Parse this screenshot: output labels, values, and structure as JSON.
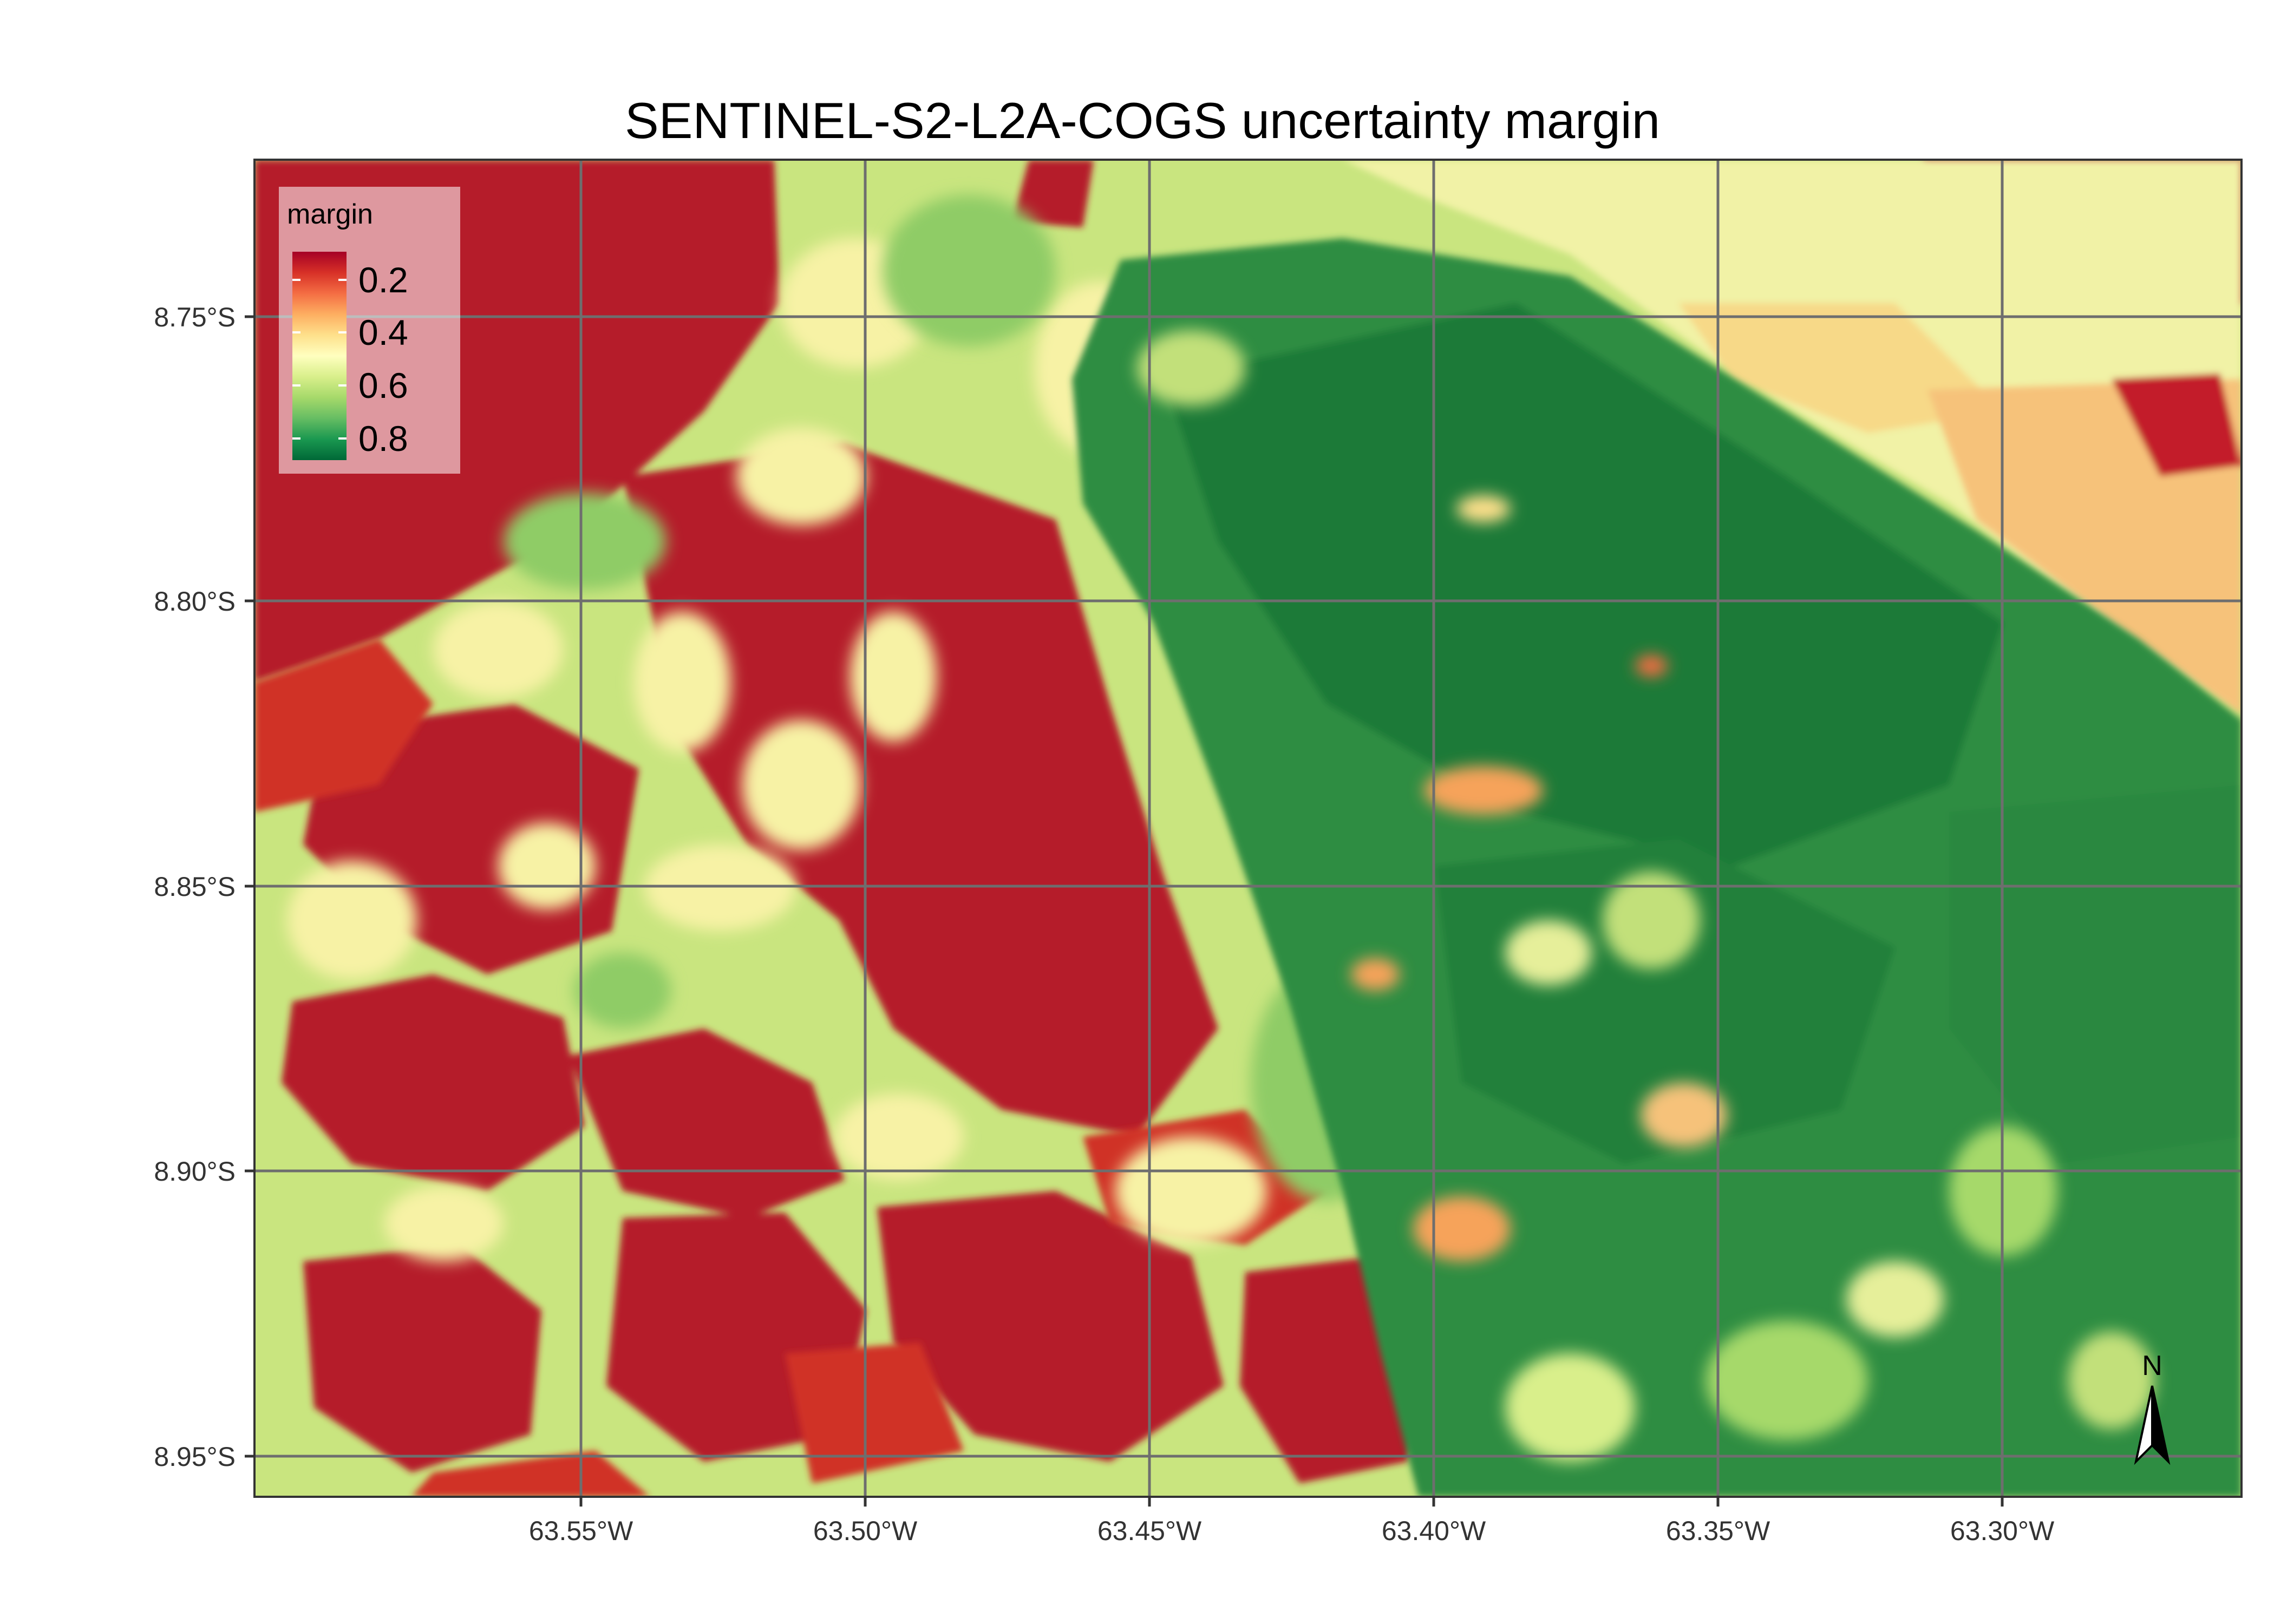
{
  "title": "SENTINEL-S2-L2A-COGS uncertainty margin",
  "map": {
    "y_ticks": [
      "8.75°S",
      "8.80°S",
      "8.85°S",
      "8.90°S",
      "8.95°S"
    ],
    "x_ticks": [
      "63.55°W",
      "63.50°W",
      "63.45°W",
      "63.40°W",
      "63.35°W",
      "63.30°W"
    ]
  },
  "legend": {
    "title": "margin",
    "labels": [
      "0.2",
      "0.4",
      "0.6",
      "0.8"
    ],
    "colors": [
      "#a50026",
      "#d73027",
      "#f46d43",
      "#fdae61",
      "#fee08b",
      "#ffffbf",
      "#d9ef8b",
      "#a6d96a",
      "#66bd63",
      "#1a9850",
      "#006837"
    ]
  },
  "north_arrow": {
    "label": "N"
  },
  "colors": {
    "low_margin": "#a50026",
    "mid_margin": "#ffffbf",
    "high_margin": "#006837",
    "grid": "#666666"
  }
}
